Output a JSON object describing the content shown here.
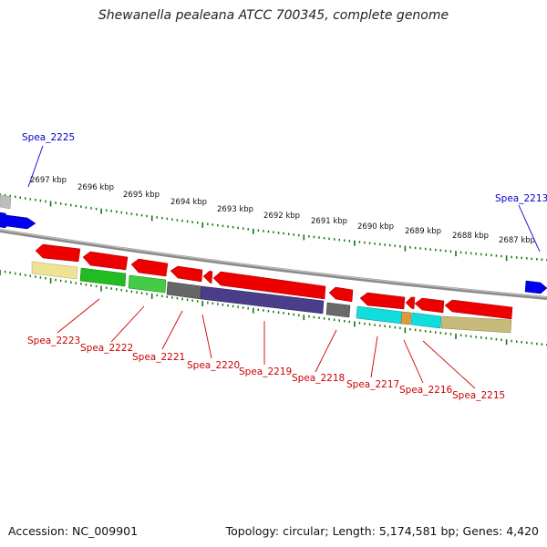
{
  "title": "Shewanella pealeana ATCC 700345, complete genome",
  "footer": {
    "accession": "Accession: NC_009901",
    "topology": "Topology: circular; Length: 5,174,581 bp; Genes: 4,420"
  },
  "colors": {
    "forward_outer_label": "#0000cc",
    "reverse_label": "#cc0000",
    "ticks": "#117711",
    "backbone": "#888888"
  },
  "kbp_ticks": [
    "2697 kbp",
    "2696 kbp",
    "2695 kbp",
    "2694 kbp",
    "2693 kbp",
    "2692 kbp",
    "2691 kbp",
    "2690 kbp",
    "2689 kbp",
    "2688 kbp",
    "2687 kbp"
  ],
  "genes": [
    {
      "id": "Spea_2225",
      "strand": "forward"
    },
    {
      "id": "Spea_2213",
      "strand": "forward"
    },
    {
      "id": "Spea_2223",
      "strand": "reverse"
    },
    {
      "id": "Spea_2222",
      "strand": "reverse"
    },
    {
      "id": "Spea_2221",
      "strand": "reverse"
    },
    {
      "id": "Spea_2220",
      "strand": "reverse"
    },
    {
      "id": "Spea_2219",
      "strand": "reverse"
    },
    {
      "id": "Spea_2218",
      "strand": "reverse"
    },
    {
      "id": "Spea_2217",
      "strand": "reverse"
    },
    {
      "id": "Spea_2216",
      "strand": "reverse"
    },
    {
      "id": "Spea_2215",
      "strand": "reverse"
    }
  ]
}
